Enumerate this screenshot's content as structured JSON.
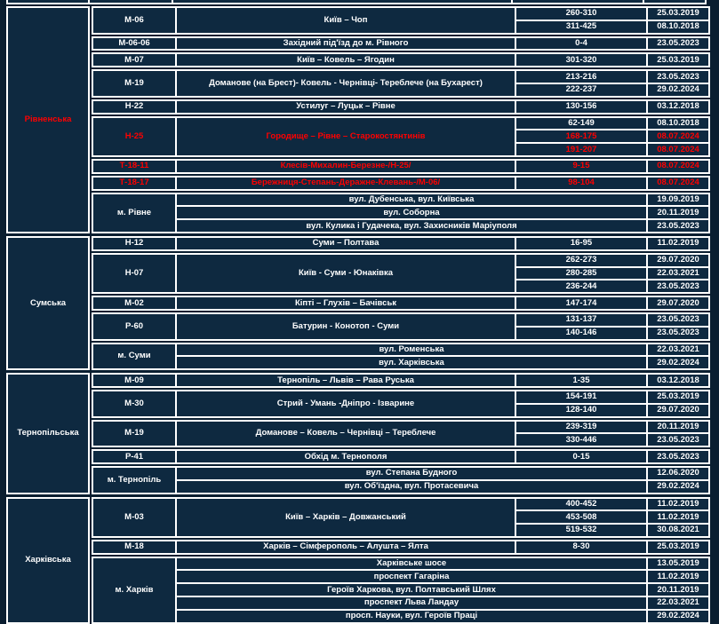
{
  "colors": {
    "page_background": "#0a1e30",
    "cell_background": "#0e2940",
    "grid_border": "#ffffff",
    "text_default": "#ffffff",
    "text_alert": "#ff0000",
    "error_marker_green": "#1e9e3e"
  },
  "table": {
    "sections": [
      {
        "region": "Рівненська",
        "region_color": "#ff0000",
        "groups": [
          {
            "code": "М-06",
            "route": "Київ – Чоп",
            "rows": [
              {
                "range": "260-310",
                "date": "25.03.2019"
              },
              {
                "range": "311-425",
                "date": "08.10.2018"
              }
            ]
          },
          {
            "code": "М-06-06",
            "route": "Західний під'їзд до м. Рівного",
            "rows": [
              {
                "range": "0-4",
                "date": "23.05.2023"
              }
            ]
          },
          {
            "code": "М-07",
            "route": "Київ – Ковель – Ягодин",
            "rows": [
              {
                "range": "301-320",
                "date": "25.03.2019"
              }
            ]
          },
          {
            "code": "М-19",
            "route": "Доманове (на Брест)- Ковель - Чернівці- Тереблече (на Бухарест)",
            "rows": [
              {
                "range": "213-216",
                "date": "23.05.2023"
              },
              {
                "range": "222-237",
                "date": "29.02.2024"
              }
            ]
          },
          {
            "code": "Н-22",
            "route": "Устилуг – Луцьк – Рівне",
            "rows": [
              {
                "range": "130-156",
                "date": "03.12.2018"
              }
            ]
          },
          {
            "code": "Н-25",
            "route": "Городище – Рівне – Старокостянтинів",
            "color": "#ff0000",
            "rows": [
              {
                "range": "62-149",
                "date": "08.10.2018"
              },
              {
                "range": "168-175",
                "date": "08.07.2024",
                "color": "#ff0000"
              },
              {
                "range": "191-207",
                "date": "08.07.2024",
                "color": "#ff0000"
              }
            ]
          },
          {
            "code": "Т-18-11",
            "route": "Клесів-Михалин-Березне-/Н-25/",
            "color": "#ff0000",
            "rows": [
              {
                "range": "9-15",
                "date": "08.07.2024",
                "color": "#ff0000",
                "marker": "green-error-indicator"
              }
            ]
          },
          {
            "code": "Т-18-17",
            "route": "Бережниця-Степань-Деражне-Клевань-/М-06/",
            "color": "#ff0000",
            "rows": [
              {
                "range": "98-104",
                "date": "08.07.2024",
                "color": "#ff0000"
              }
            ]
          },
          {
            "code": "м. Рівне",
            "type": "streets",
            "rows": [
              {
                "street": "вул. Дубенська, вул. Київська",
                "date": "19.09.2019"
              },
              {
                "street": "вул. Соборна",
                "date": "20.11.2019"
              },
              {
                "street": "вул. Кулика і Гудачека, вул. Захисників Маріуполя",
                "date": "23.05.2023"
              }
            ]
          }
        ]
      },
      {
        "region": "Сумська",
        "groups": [
          {
            "code": "Н-12",
            "route": "Суми – Полтава",
            "rows": [
              {
                "range": "16-95",
                "date": "11.02.2019"
              }
            ]
          },
          {
            "code": "Н-07",
            "route": "Київ - Суми - Юнаківка",
            "rows": [
              {
                "range": "262-273",
                "date": "29.07.2020"
              },
              {
                "range": "280-285",
                "date": "22.03.2021"
              },
              {
                "range": "236-244",
                "date": "23.05.2023"
              }
            ]
          },
          {
            "code": "М-02",
            "route": "Кіпті – Глухів – Бачівськ",
            "rows": [
              {
                "range": "147-174",
                "date": "29.07.2020"
              }
            ]
          },
          {
            "code": "Р-60",
            "route": "Батурин - Конотоп - Суми",
            "rows": [
              {
                "range": "131-137",
                "date": "23.05.2023"
              },
              {
                "range": "140-146",
                "date": "23.05.2023"
              }
            ]
          },
          {
            "code": "м. Суми",
            "type": "streets",
            "rows": [
              {
                "street": "вул. Роменська",
                "date": "22.03.2021"
              },
              {
                "street": "вул. Харківська",
                "date": "29.02.2024"
              }
            ]
          }
        ]
      },
      {
        "region": "Тернопільська",
        "groups": [
          {
            "code": "М-09",
            "route": "Тернопіль – Львів – Рава Руська",
            "rows": [
              {
                "range": "1-35",
                "date": "03.12.2018"
              }
            ]
          },
          {
            "code": "М-30",
            "route": "Стрий - Умань -Дніпро - Ізварине",
            "rows": [
              {
                "range": "154-191",
                "date": "25.03.2019"
              },
              {
                "range": "128-140",
                "date": "29.07.2020"
              }
            ]
          },
          {
            "code": "М-19",
            "route": "Доманове – Ковель – Чернівці – Тереблече",
            "rows": [
              {
                "range": "239-319",
                "date": "20.11.2019"
              },
              {
                "range": "330-446",
                "date": "23.05.2023"
              }
            ]
          },
          {
            "code": "Р-41",
            "route": "Обхід м. Тернополя",
            "rows": [
              {
                "range": "0-15",
                "date": "23.05.2023"
              }
            ]
          },
          {
            "code": "м. Тернопіль",
            "type": "streets",
            "rows": [
              {
                "street": "вул. Степана Будного",
                "date": "12.06.2020"
              },
              {
                "street": "вул. Об'їздна, вул. Протасевича",
                "date": "29.02.2024"
              }
            ]
          }
        ]
      },
      {
        "region": "Харківська",
        "groups": [
          {
            "code": "М-03",
            "route": "Київ – Харків – Довжанський",
            "rows": [
              {
                "range": "400-452",
                "date": "11.02.2019"
              },
              {
                "range": "453-508",
                "date": "11.02.2019"
              },
              {
                "range": "519-532",
                "date": "30.08.2021"
              }
            ]
          },
          {
            "code": "М-18",
            "route": "Харків – Сімферополь – Алушта – Ялта",
            "rows": [
              {
                "range": "8-30",
                "date": "25.03.2019"
              }
            ]
          },
          {
            "code": "м. Харків",
            "type": "streets",
            "rows": [
              {
                "street": "Харківське шосе",
                "date": "13.05.2019"
              },
              {
                "street": "проспект Гагаріна",
                "date": "11.02.2019"
              },
              {
                "street": "Героїв Харкова, вул. Полтавський Шлях",
                "date": "20.11.2019"
              },
              {
                "street": "проспект Льва Ландау",
                "date": "22.03.2021"
              },
              {
                "street": "просп. Науки, вул. Героїв Праці",
                "date": "29.02.2024"
              }
            ]
          }
        ]
      }
    ]
  }
}
